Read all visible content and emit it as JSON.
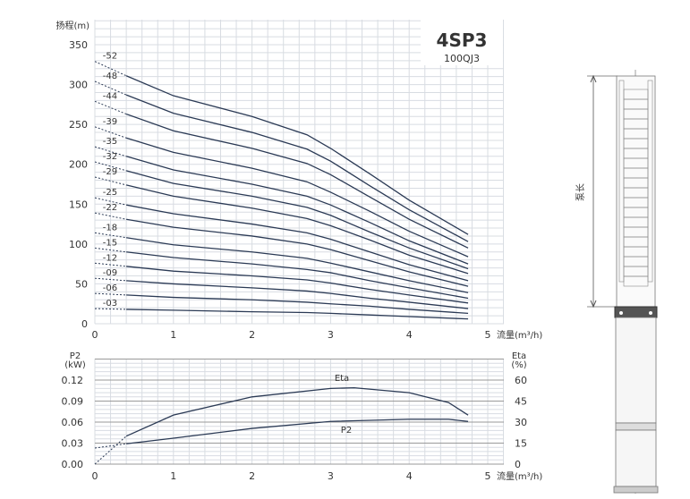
{
  "model": {
    "name": "4SP3",
    "alt_name": "100QJ3"
  },
  "pump_drawing": {
    "length_label": "泵长"
  },
  "chart_data": [
    {
      "type": "line",
      "title": "",
      "ylabel": "扬程(m)",
      "xlabel": "流量(m³/h)",
      "xlim": [
        0,
        5
      ],
      "ylim": [
        0,
        350
      ],
      "xticks": [
        0,
        1,
        2,
        3,
        4,
        5
      ],
      "yticks": [
        0,
        50,
        100,
        150,
        200,
        250,
        300,
        350
      ],
      "grid": true,
      "x": [
        0,
        0.4,
        1,
        2,
        2.7,
        3,
        3.5,
        4,
        4.75
      ],
      "dashed_segment_to_x": 0.4,
      "series": [
        {
          "name": "-52",
          "values": [
            329,
            311,
            286,
            260,
            237,
            220,
            188,
            155,
            112
          ]
        },
        {
          "name": "-48",
          "values": [
            304,
            287,
            264,
            240,
            219,
            204,
            173,
            143,
            103
          ]
        },
        {
          "name": "-44",
          "values": [
            279,
            263,
            242,
            220,
            201,
            187,
            159,
            131,
            95
          ]
        },
        {
          "name": "-39",
          "values": [
            247,
            233,
            215,
            195,
            178,
            165,
            141,
            116,
            84
          ]
        },
        {
          "name": "-35",
          "values": [
            222,
            210,
            193,
            175,
            160,
            149,
            127,
            104,
            75
          ]
        },
        {
          "name": "-32",
          "values": [
            203,
            192,
            176,
            160,
            146,
            136,
            115,
            95,
            69
          ]
        },
        {
          "name": "-29",
          "values": [
            184,
            174,
            160,
            145,
            132,
            123,
            105,
            86,
            63
          ]
        },
        {
          "name": "-25",
          "values": [
            158,
            149,
            138,
            125,
            114,
            106,
            90,
            74,
            54
          ]
        },
        {
          "name": "-22",
          "values": [
            139,
            131,
            121,
            110,
            100,
            93,
            79,
            65,
            47
          ]
        },
        {
          "name": "-18",
          "values": [
            114,
            108,
            99,
            90,
            82,
            76,
            65,
            54,
            39
          ]
        },
        {
          "name": "-15",
          "values": [
            95,
            90,
            83,
            75,
            68,
            64,
            54,
            45,
            32
          ]
        },
        {
          "name": "-12",
          "values": [
            76,
            72,
            66,
            60,
            55,
            51,
            43,
            36,
            26
          ]
        },
        {
          "name": "-09",
          "values": [
            57,
            54,
            50,
            45,
            41,
            38,
            32,
            27,
            19
          ]
        },
        {
          "name": "-06",
          "values": [
            38,
            36,
            33,
            30,
            27,
            25,
            22,
            18,
            13
          ]
        },
        {
          "name": "-03",
          "values": [
            19,
            18,
            17,
            15,
            14,
            13,
            11,
            9,
            6
          ]
        }
      ]
    },
    {
      "type": "line",
      "title": "",
      "ylabel": "P2",
      "ylabel_unit": "(kW)",
      "y2label": "Eta",
      "y2label_unit": "(%)",
      "xlabel": "流量(m³/h)",
      "xlim": [
        0,
        5
      ],
      "ylim": [
        0,
        0.15
      ],
      "y2lim": [
        0,
        75
      ],
      "xticks": [
        0,
        1,
        2,
        3,
        4,
        5
      ],
      "yticks": [
        "0.00",
        "0.03",
        "0.06",
        "0.09",
        "0.12"
      ],
      "y2ticks": [
        "0",
        "15",
        "30",
        "45",
        "60"
      ],
      "grid": true,
      "dashed_segment_to_x": 0.4,
      "series": [
        {
          "name": "Eta",
          "axis": "right",
          "x": [
            0,
            0.4,
            1,
            2,
            3,
            3.3,
            4,
            4.5,
            4.75
          ],
          "values": [
            0,
            20,
            35,
            48,
            54,
            54.5,
            51,
            44,
            35
          ]
        },
        {
          "name": "P2",
          "axis": "left",
          "x": [
            0,
            0.4,
            1,
            2,
            3,
            4,
            4.5,
            4.75
          ],
          "values": [
            0.023,
            0.029,
            0.037,
            0.051,
            0.061,
            0.064,
            0.064,
            0.061
          ]
        }
      ]
    }
  ],
  "colors": {
    "curve": "#2b3a55",
    "grid": "#d8dce2",
    "grid_major": "#9a9a9a"
  }
}
